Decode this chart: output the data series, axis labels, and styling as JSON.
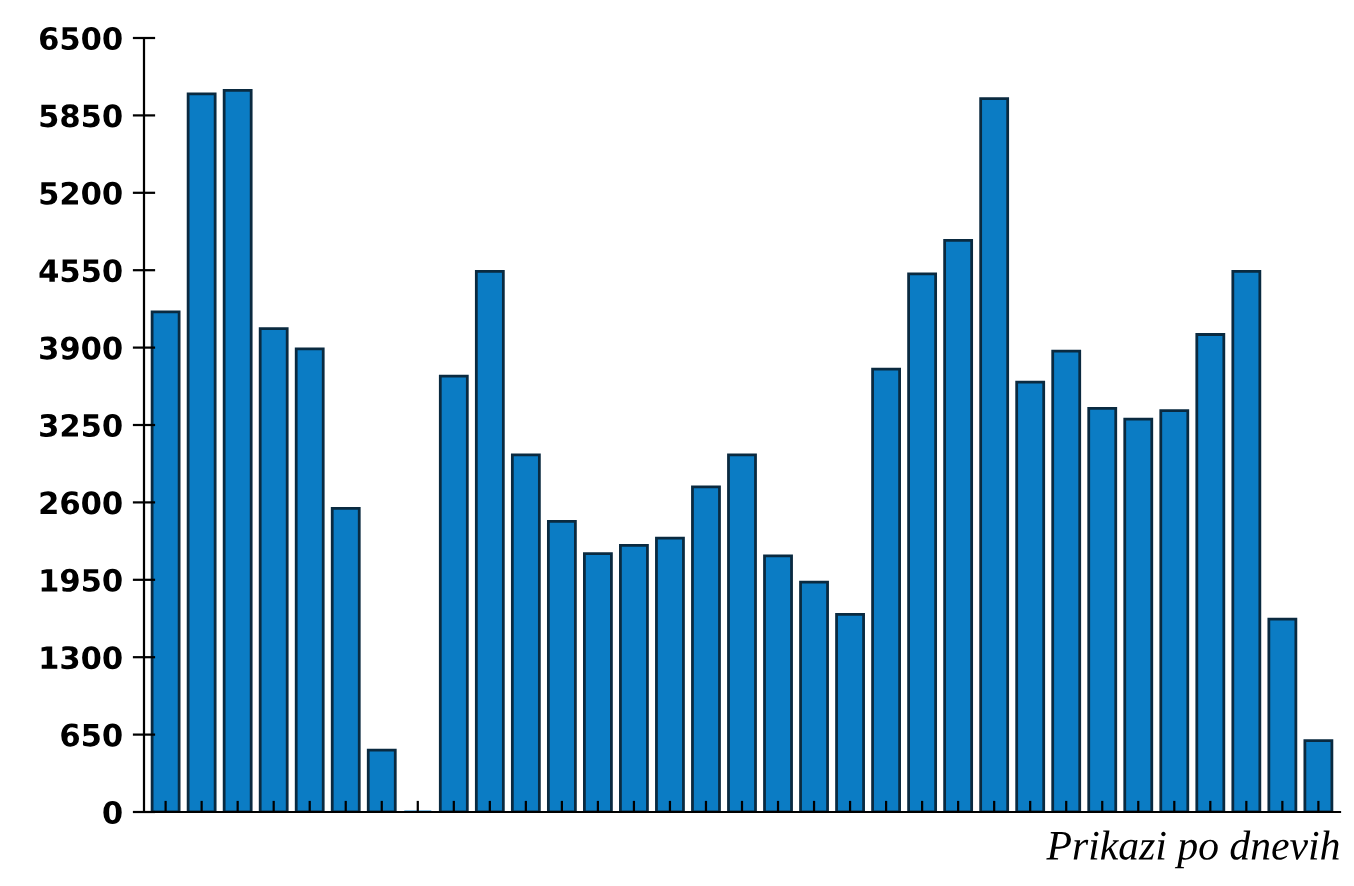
{
  "chart_data": {
    "type": "bar",
    "categories": [
      null,
      null,
      null,
      null,
      null,
      null,
      null,
      null,
      null,
      null,
      null,
      null,
      null,
      null,
      null,
      null,
      null,
      null,
      null,
      null,
      null,
      null,
      null,
      null,
      null,
      null,
      null,
      null,
      null,
      null,
      null,
      null,
      null
    ],
    "values": [
      4200,
      6030,
      6060,
      4060,
      3890,
      2550,
      520,
      0,
      3660,
      4540,
      3000,
      2440,
      2170,
      2240,
      2300,
      2730,
      3000,
      2150,
      1930,
      1660,
      3720,
      4520,
      4800,
      5990,
      3610,
      3870,
      3390,
      3300,
      3370,
      4010,
      4540,
      1620,
      600
    ],
    "color": "#0b7cc4",
    "ylim": [
      0,
      6500
    ],
    "yticks": [
      0,
      650,
      1300,
      1950,
      2600,
      3250,
      3900,
      4550,
      5200,
      5850,
      6500
    ],
    "grid": false,
    "tick_labels": "y",
    "annotations": [
      "Prikazi po dnevih"
    ]
  }
}
